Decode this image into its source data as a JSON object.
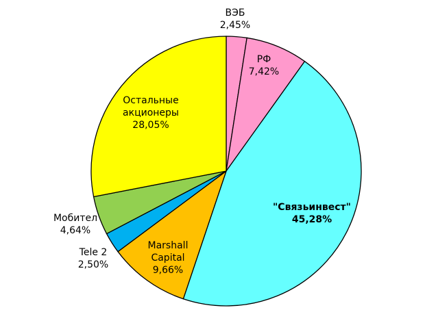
{
  "chart_data": {
    "type": "pie",
    "categories": [
      "ВЭБ",
      "РФ",
      "\"Связьинвест\"",
      "Marshall Capital",
      "Tele 2",
      "Мобител",
      "Остальные акционеры"
    ],
    "values": [
      2.45,
      7.42,
      45.28,
      9.66,
      2.5,
      4.64,
      28.05
    ],
    "value_labels": [
      "2,45%",
      "7,42%",
      "45,28%",
      "9,66%",
      "2,50%",
      "4,64%",
      "28,05%"
    ],
    "colors": [
      "#ff99cc",
      "#ff99cc",
      "#66ffff",
      "#ffc000",
      "#00b0f0",
      "#92d050",
      "#ffff00"
    ]
  }
}
